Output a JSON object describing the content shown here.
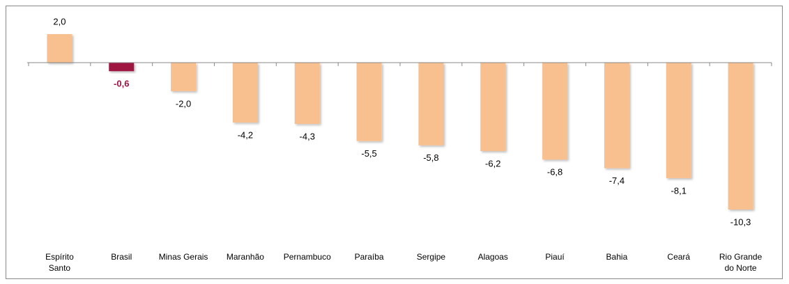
{
  "chart_data": {
    "type": "bar",
    "categories": [
      "Espírito Santo",
      "Brasil",
      "Minas Gerais",
      "Maranhão",
      "Pernambuco",
      "Paraíba",
      "Sergipe",
      "Alagoas",
      "Piauí",
      "Bahia",
      "Ceará",
      "Rio Grande do Norte"
    ],
    "values": [
      2.0,
      -0.6,
      -2.0,
      -4.2,
      -4.3,
      -5.5,
      -5.8,
      -6.2,
      -6.8,
      -7.4,
      -8.1,
      -10.3
    ],
    "value_labels": [
      "2,0",
      "-0,6",
      "-2,0",
      "-4,2",
      "-4,3",
      "-5,5",
      "-5,8",
      "-6,2",
      "-6,8",
      "-7,4",
      "-8,1",
      "-10,3"
    ],
    "colors": [
      "#f9c08f",
      "#a01442",
      "#f9c08f",
      "#f9c08f",
      "#f9c08f",
      "#f9c08f",
      "#f9c08f",
      "#f9c08f",
      "#f9c08f",
      "#f9c08f",
      "#f9c08f",
      "#f9c08f"
    ],
    "label_colors": [
      "#000000",
      "#a01442",
      "#000000",
      "#000000",
      "#000000",
      "#000000",
      "#000000",
      "#000000",
      "#000000",
      "#000000",
      "#000000",
      "#000000"
    ]
  }
}
